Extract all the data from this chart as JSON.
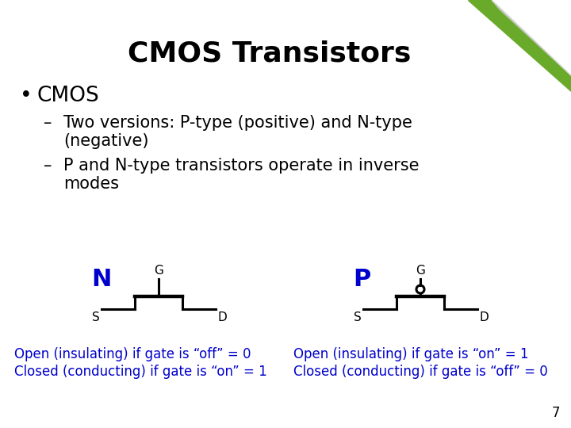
{
  "title": "CMOS Transistors",
  "title_fontsize": 26,
  "title_fontweight": "bold",
  "bg_color": "#ffffff",
  "text_color": "#000000",
  "blue_color": "#0000CC",
  "bullet": "CMOS",
  "dash1_line1": "Two versions: P-type (positive) and N-type",
  "dash1_line2": "(negative)",
  "dash2_line1": "P and N-type transistors operate in inverse",
  "dash2_line2": "modes",
  "N_label": "N",
  "P_label": "P",
  "G_label": "G",
  "S_label": "S",
  "D_label": "D",
  "note_left_1": "Open (insulating) if gate is “off” = 0",
  "note_left_2": "Closed (conducting) if gate is “on” = 1",
  "note_right_1": "Open (insulating) if gate is “on” = 1",
  "note_right_2": "Closed (conducting) if gate is “off” = 0",
  "page_num": "7",
  "corner_green": "#6aaa2a",
  "corner_shadow": "#aaaaaa"
}
